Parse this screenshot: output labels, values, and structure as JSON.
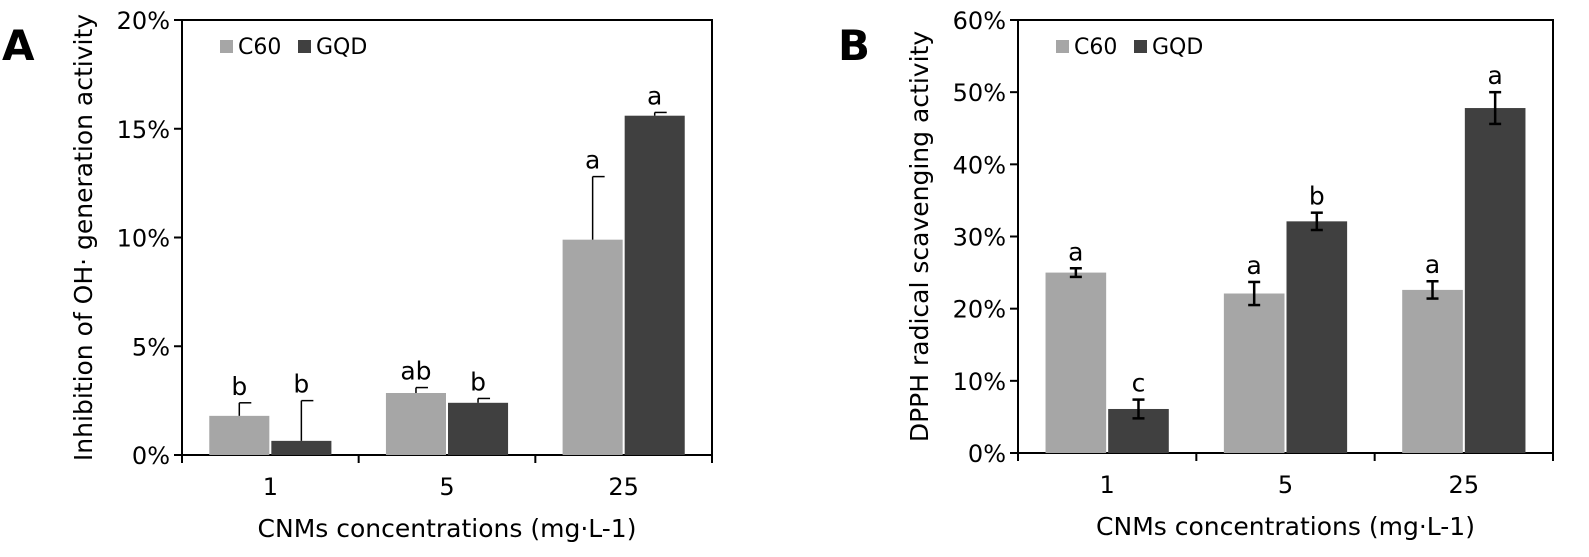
{
  "chart_data": [
    {
      "panel": "A",
      "type": "bar",
      "categories": [
        "1",
        "5",
        "25"
      ],
      "series": [
        {
          "name": "C60",
          "values": [
            1.8,
            2.85,
            9.9
          ],
          "errors": [
            0.6,
            0.25,
            2.9
          ],
          "sig": [
            "b",
            "ab",
            "a"
          ]
        },
        {
          "name": "GQD",
          "values": [
            0.65,
            2.4,
            15.6
          ],
          "errors": [
            1.85,
            0.2,
            0.15
          ],
          "sig": [
            "b",
            "b",
            "a"
          ]
        }
      ],
      "xlabel": "CNMs concentrations (mg·L-1)",
      "ylabel": "Inhibition of OH· generation activity",
      "ylim": [
        0,
        20
      ],
      "yticks": [
        "0%",
        "5%",
        "10%",
        "15%",
        "20%"
      ],
      "error_style": "upper",
      "legend": "top-left",
      "grid": false
    },
    {
      "panel": "B",
      "type": "bar",
      "categories": [
        "1",
        "5",
        "25"
      ],
      "series": [
        {
          "name": "C60",
          "values": [
            25.0,
            22.1,
            22.6
          ],
          "errors": [
            0.6,
            1.6,
            1.2
          ],
          "sig": [
            "a",
            "a",
            "a"
          ]
        },
        {
          "name": "GQD",
          "values": [
            6.1,
            32.1,
            47.8
          ],
          "errors": [
            1.3,
            1.2,
            2.2
          ],
          "sig": [
            "c",
            "b",
            "a"
          ]
        }
      ],
      "xlabel": "CNMs concentrations (mg·L-1)",
      "ylabel": "DPPH radical scavenging activity",
      "ylim": [
        0,
        60
      ],
      "yticks": [
        "0%",
        "10%",
        "20%",
        "30%",
        "40%",
        "50%",
        "60%"
      ],
      "error_style": "both",
      "legend": "top-left",
      "grid": false
    }
  ],
  "colors": {
    "C60": "#a6a6a6",
    "GQD": "#404040"
  }
}
